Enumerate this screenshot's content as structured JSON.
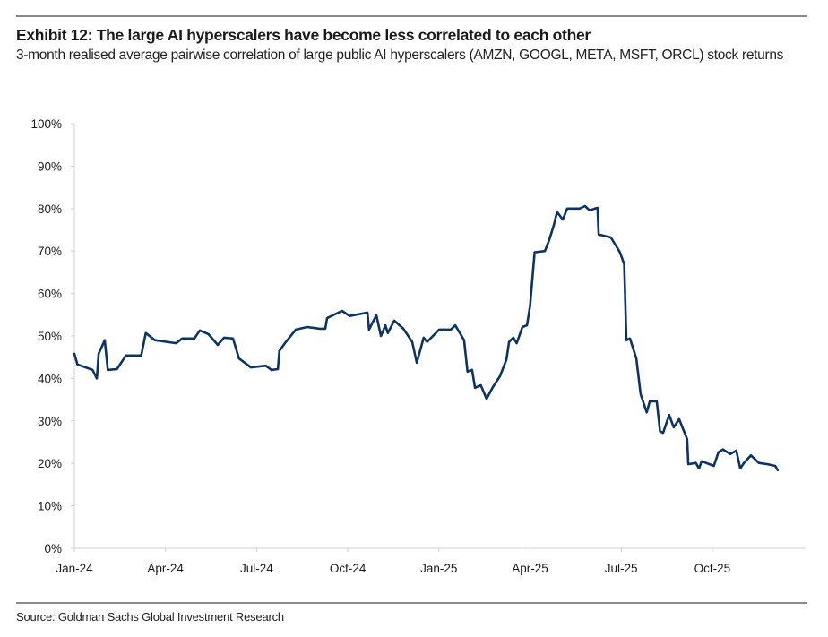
{
  "chart_data": {
    "type": "line",
    "title": "Exhibit 12: The large AI hyperscalers have become less correlated to each other",
    "subtitle": "3-month realised average pairwise correlation of large public AI hyperscalers (AMZN, GOOGL, META, MSFT, ORCL) stock returns",
    "source": "Source: Goldman Sachs Global Investment Research",
    "xlabel": "",
    "ylabel": "",
    "x_unit": "months since Jan-24",
    "xlim": [
      0,
      23.8
    ],
    "ylim": [
      0,
      100
    ],
    "grid": false,
    "legend": "none",
    "line_color": "#0d3461",
    "xticks": [
      {
        "pos": 0,
        "label": "Jan-24"
      },
      {
        "pos": 3,
        "label": "Apr-24"
      },
      {
        "pos": 6,
        "label": "Jul-24"
      },
      {
        "pos": 9,
        "label": "Oct-24"
      },
      {
        "pos": 12,
        "label": "Jan-25"
      },
      {
        "pos": 15,
        "label": "Apr-25"
      },
      {
        "pos": 18,
        "label": "Jul-25"
      },
      {
        "pos": 21,
        "label": "Oct-25"
      }
    ],
    "yticks": [
      {
        "v": 0,
        "label": "0%"
      },
      {
        "v": 10,
        "label": "10%"
      },
      {
        "v": 20,
        "label": "20%"
      },
      {
        "v": 30,
        "label": "30%"
      },
      {
        "v": 40,
        "label": "40%"
      },
      {
        "v": 50,
        "label": "50%"
      },
      {
        "v": 60,
        "label": "60%"
      },
      {
        "v": 70,
        "label": "70%"
      },
      {
        "v": 80,
        "label": "80%"
      },
      {
        "v": 90,
        "label": "90%"
      },
      {
        "v": 100,
        "label": "100%"
      }
    ],
    "series": [
      {
        "name": "Average pairwise correlation (%)",
        "x": [
          0,
          0.1,
          0.6,
          0.74,
          0.8,
          1.0,
          1.1,
          1.4,
          1.7,
          2.2,
          2.35,
          2.65,
          3.35,
          3.55,
          3.95,
          4.13,
          4.42,
          4.72,
          4.93,
          5.22,
          5.42,
          5.81,
          6.3,
          6.49,
          6.7,
          6.75,
          6.93,
          7.29,
          7.67,
          8.07,
          8.26,
          8.32,
          8.81,
          9.06,
          9.65,
          9.7,
          9.94,
          10.09,
          10.24,
          10.32,
          10.53,
          10.83,
          11.12,
          11.27,
          11.5,
          11.61,
          12.01,
          12.39,
          12.54,
          12.83,
          12.94,
          13.09,
          13.19,
          13.38,
          13.57,
          13.78,
          14.01,
          14.22,
          14.31,
          14.45,
          14.56,
          14.75,
          14.9,
          15.0,
          15.15,
          15.49,
          15.63,
          15.78,
          15.89,
          16.08,
          16.22,
          16.63,
          16.81,
          16.96,
          17.22,
          17.26,
          17.66,
          17.96,
          18.1,
          18.17,
          18.29,
          18.5,
          18.64,
          18.84,
          18.94,
          19.17,
          19.28,
          19.38,
          19.58,
          19.73,
          19.91,
          20.17,
          20.21,
          20.46,
          20.56,
          20.65,
          21.05,
          21.2,
          21.35,
          21.59,
          21.79,
          21.92,
          22.04,
          22.27,
          22.53,
          22.82,
          23.07,
          23.15
        ],
        "y": [
          45.8,
          43.3,
          42,
          40,
          45.8,
          49,
          42,
          42.2,
          45.4,
          45.4,
          50.7,
          49,
          48.3,
          49.4,
          49.4,
          51.3,
          50.4,
          47.9,
          49.6,
          49.4,
          44.7,
          42.6,
          43,
          42,
          42.2,
          46.5,
          48.3,
          51.5,
          52.1,
          51.7,
          51.7,
          54.2,
          55.9,
          54.7,
          55.5,
          51.5,
          54.9,
          50,
          52.5,
          50.7,
          53.6,
          51.7,
          48.6,
          43.7,
          49.6,
          48.6,
          51.5,
          51.5,
          52.5,
          49,
          41.6,
          42,
          37.8,
          38.4,
          35.2,
          38,
          40.5,
          44.4,
          48.6,
          49.6,
          48.3,
          52.1,
          52.5,
          57,
          69.7,
          70,
          72.6,
          76,
          79.2,
          77.4,
          80,
          80,
          80.6,
          79.6,
          80.2,
          73.9,
          73.2,
          69.7,
          66.9,
          49,
          49.4,
          44.7,
          36.3,
          32,
          34.6,
          34.6,
          27.5,
          27.2,
          31.4,
          28.5,
          30.4,
          25.7,
          19.8,
          20.1,
          18.8,
          20.5,
          19.4,
          22.6,
          23.3,
          22.2,
          23,
          18.8,
          20.1,
          21.9,
          20.1,
          19.8,
          19.4,
          18.4
        ]
      }
    ]
  }
}
